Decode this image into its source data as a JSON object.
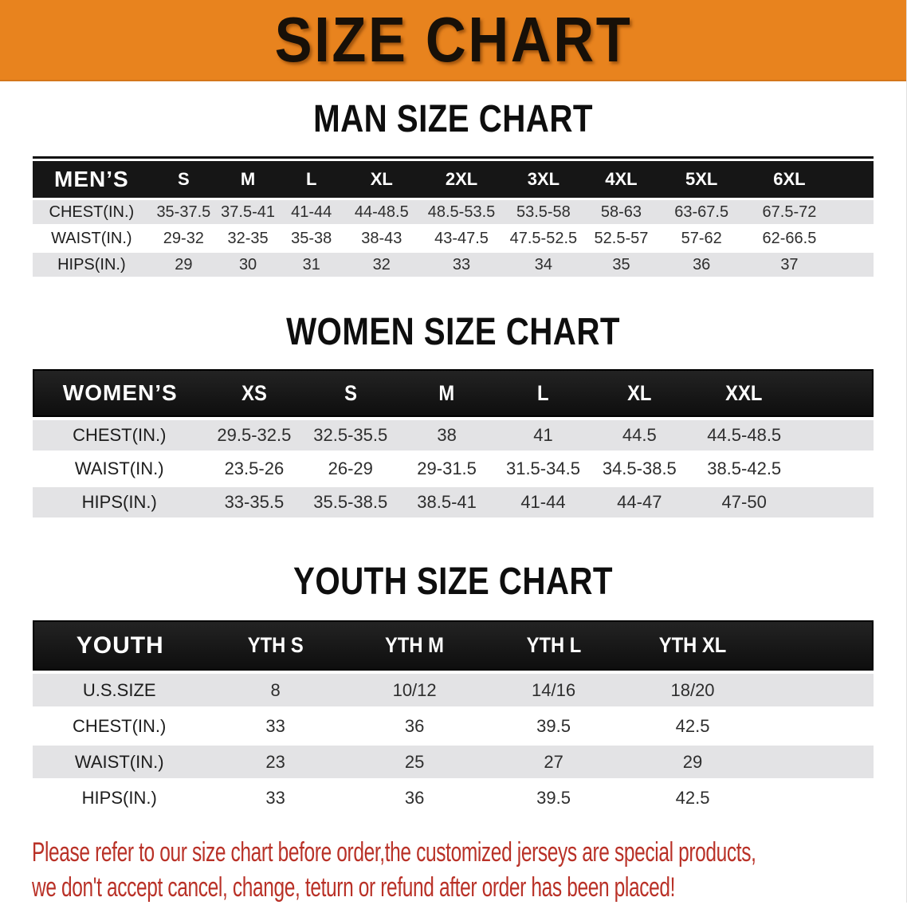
{
  "banner": {
    "title": "SIZE CHART",
    "bg_color": "#E8831E",
    "text_color": "#171008"
  },
  "sections": [
    {
      "heading": "MAN SIZE CHART",
      "table": {
        "corner_label": "MEN’S",
        "columns": [
          "S",
          "M",
          "L",
          "XL",
          "2XL",
          "3XL",
          "4XL",
          "5XL",
          "6XL"
        ],
        "rows": [
          {
            "label": "CHEST(IN.)",
            "values": [
              "35-37.5",
              "37.5-41",
              "41-44",
              "44-48.5",
              "48.5-53.5",
              "53.5-58",
              "58-63",
              "63-67.5",
              "67.5-72"
            ]
          },
          {
            "label": "WAIST(IN.)",
            "values": [
              "29-32",
              "32-35",
              "35-38",
              "38-43",
              "43-47.5",
              "47.5-52.5",
              "52.5-57",
              "57-62",
              "62-66.5"
            ]
          },
          {
            "label": "HIPS(IN.)",
            "values": [
              "29",
              "30",
              "31",
              "32",
              "33",
              "34",
              "35",
              "36",
              "37"
            ]
          }
        ]
      }
    },
    {
      "heading": "WOMEN SIZE CHART",
      "table": {
        "corner_label": "WOMEN’S",
        "columns": [
          "XS",
          "S",
          "M",
          "L",
          "XL",
          "XXL"
        ],
        "rows": [
          {
            "label": "CHEST(IN.)",
            "values": [
              "29.5-32.5",
              "32.5-35.5",
              "38",
              "41",
              "44.5",
              "44.5-48.5"
            ]
          },
          {
            "label": "WAIST(IN.)",
            "values": [
              "23.5-26",
              "26-29",
              "29-31.5",
              "31.5-34.5",
              "34.5-38.5",
              "38.5-42.5"
            ]
          },
          {
            "label": "HIPS(IN.)",
            "values": [
              "33-35.5",
              "35.5-38.5",
              "38.5-41",
              "41-44",
              "44-47",
              "47-50"
            ]
          }
        ]
      }
    },
    {
      "heading": "YOUTH SIZE CHART",
      "table": {
        "corner_label": "YOUTH",
        "columns": [
          "YTH S",
          "YTH M",
          "YTH L",
          "YTH XL"
        ],
        "rows": [
          {
            "label": "U.S.SIZE",
            "values": [
              "8",
              "10/12",
              "14/16",
              "18/20"
            ]
          },
          {
            "label": "CHEST(IN.)",
            "values": [
              "33",
              "36",
              "39.5",
              "42.5"
            ]
          },
          {
            "label": "WAIST(IN.)",
            "values": [
              "23",
              "25",
              "27",
              "29"
            ]
          },
          {
            "label": "HIPS(IN.)",
            "values": [
              "33",
              "36",
              "39.5",
              "42.5"
            ]
          }
        ]
      }
    }
  ],
  "footer": {
    "color": "#B93127",
    "lines": [
      "Please refer to our size chart before order,the customized jerseys are special products,",
      "we don't accept cancel, change, teturn or refund after order has been placed!"
    ]
  }
}
